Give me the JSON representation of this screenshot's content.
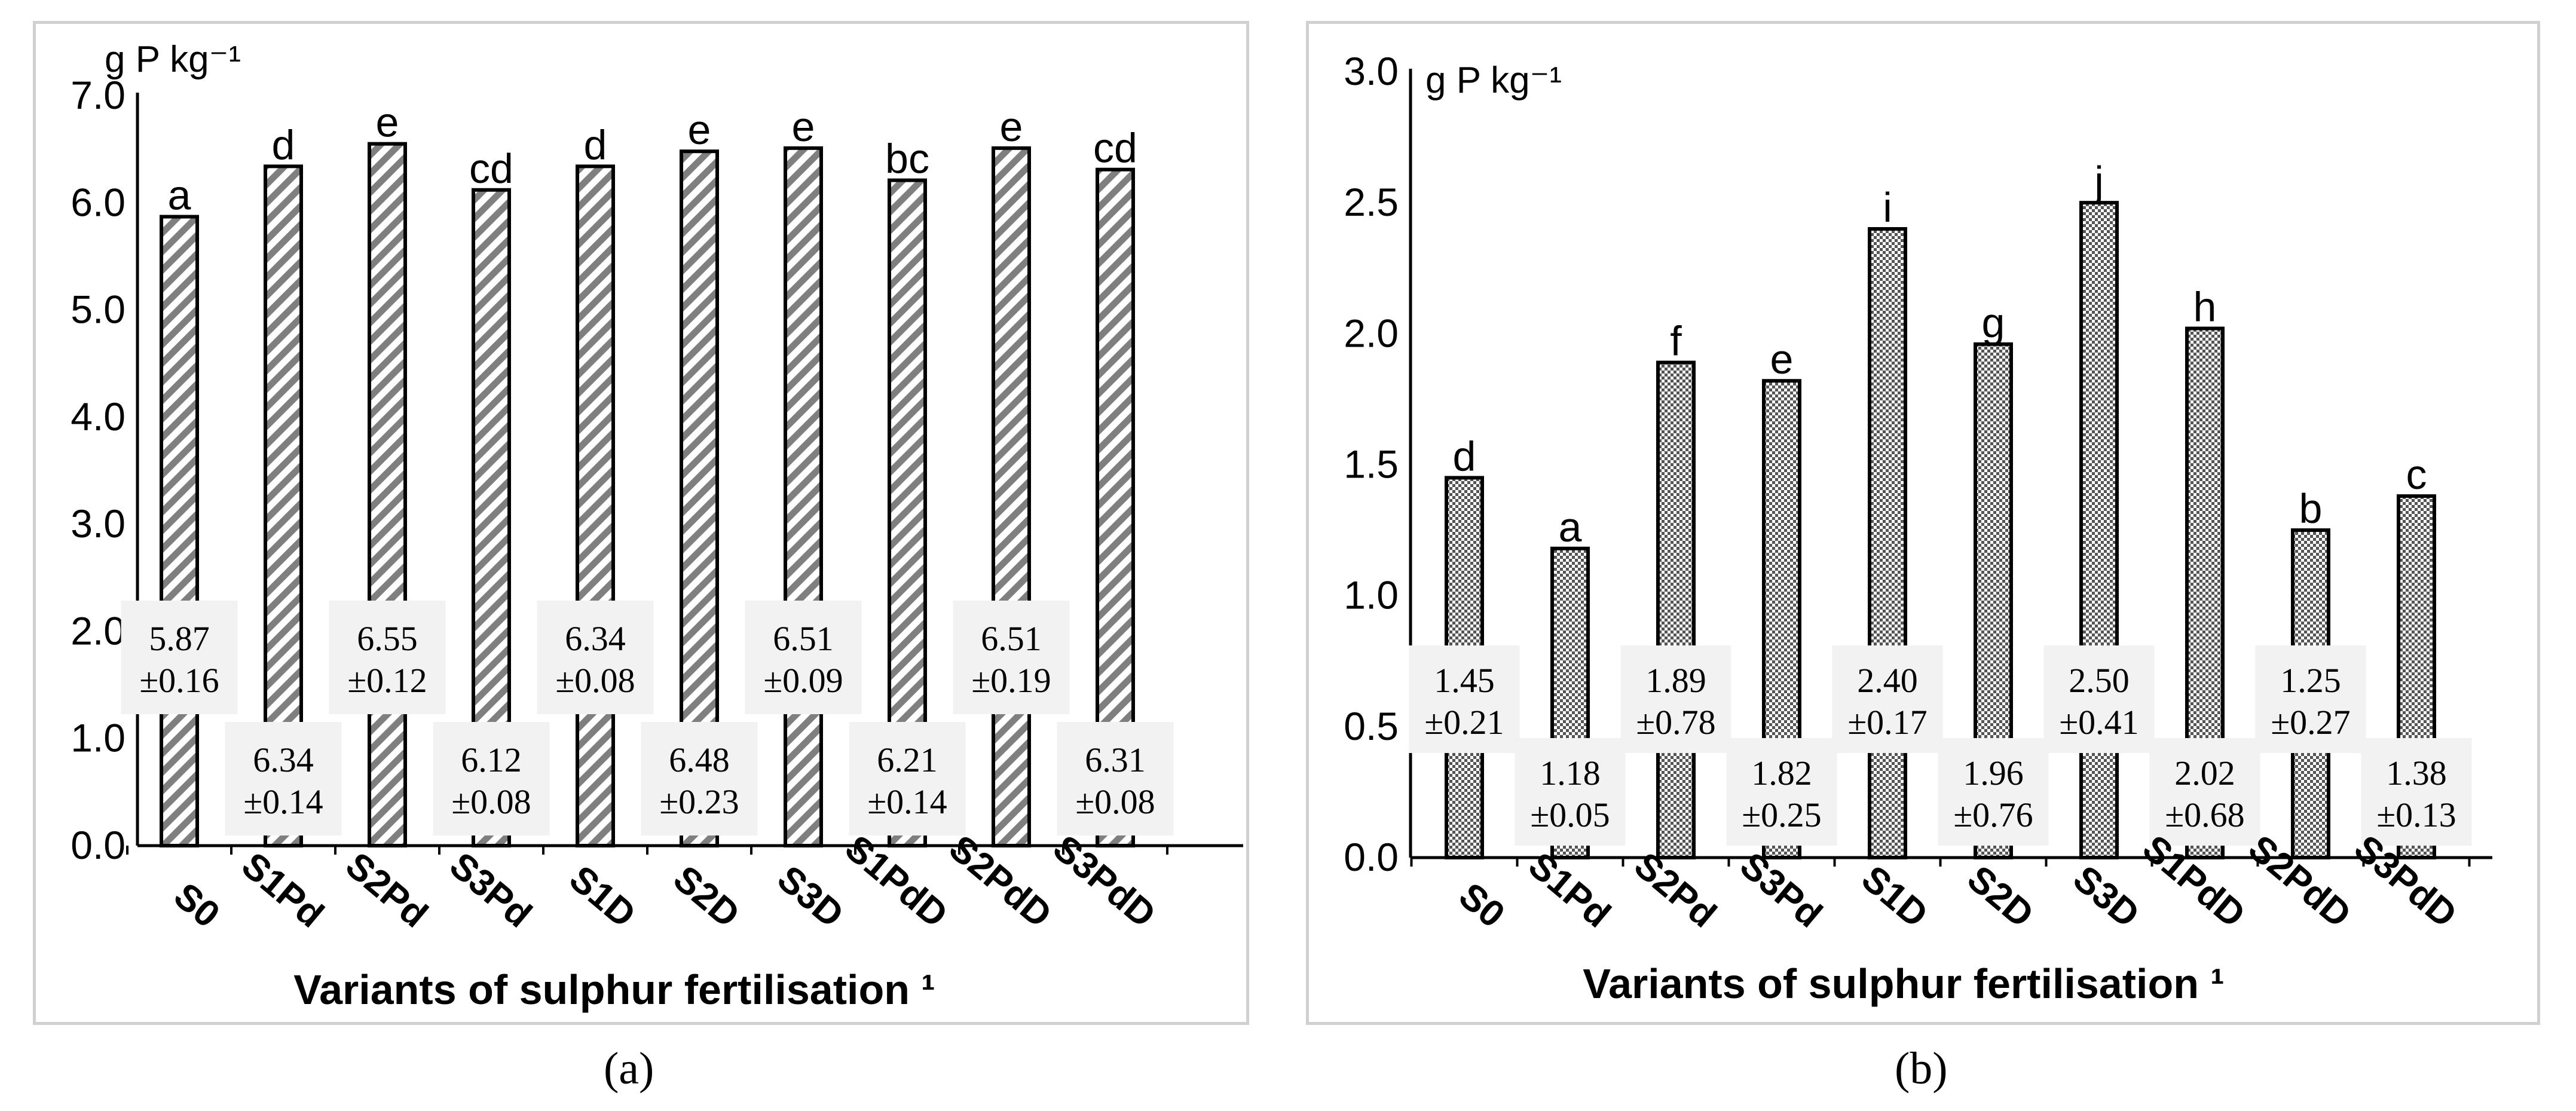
{
  "colors": {
    "axis": "#000000",
    "bar_outline": "#000000",
    "label_box": "#f2f2f2",
    "panel_border": "#d0d0d0"
  },
  "chart_data": [
    {
      "type": "bar",
      "panel": "a",
      "pattern": "diagonal-stripes",
      "ylabel": "g P kg⁻¹",
      "xlabel": "Variants of sulphur fertilisation ¹",
      "ylim": [
        0,
        7
      ],
      "yticks": [
        "0.0",
        "1.0",
        "2.0",
        "3.0",
        "4.0",
        "5.0",
        "6.0",
        "7.0"
      ],
      "categories": [
        "S0",
        "S1Pd",
        "S2Pd",
        "S3Pd",
        "S1D",
        "S2D",
        "S3D",
        "S1PdD",
        "S2PdD",
        "S3PdD"
      ],
      "values": [
        5.87,
        6.34,
        6.55,
        6.12,
        6.34,
        6.48,
        6.51,
        6.21,
        6.51,
        6.31
      ],
      "mean_labels": [
        "5.87",
        "6.34",
        "6.55",
        "6.12",
        "6.34",
        "6.48",
        "6.51",
        "6.21",
        "6.51",
        "6.31"
      ],
      "sd_labels": [
        "±0.16",
        "±0.14",
        "±0.12",
        "±0.08",
        "±0.08",
        "±0.23",
        "±0.09",
        "±0.14",
        "±0.19",
        "±0.08"
      ],
      "letters": [
        "a",
        "d",
        "e",
        "cd",
        "d",
        "e",
        "e",
        "bc",
        "e",
        "cd"
      ],
      "caption": "(a)"
    },
    {
      "type": "bar",
      "panel": "b",
      "pattern": "dots",
      "ylabel": "g P kg⁻¹",
      "xlabel": "Variants of sulphur fertilisation ¹",
      "ylim": [
        0,
        3
      ],
      "yticks": [
        "0.0",
        "0.5",
        "1.0",
        "1.5",
        "2.0",
        "2.5",
        "3.0"
      ],
      "categories": [
        "S0",
        "S1Pd",
        "S2Pd",
        "S3Pd",
        "S1D",
        "S2D",
        "S3D",
        "S1PdD",
        "S2PdD",
        "S3PdD"
      ],
      "values": [
        1.45,
        1.18,
        1.89,
        1.82,
        2.4,
        1.96,
        2.5,
        2.02,
        1.25,
        1.38
      ],
      "mean_labels": [
        "1.45",
        "1.18",
        "1.89",
        "1.82",
        "2.40",
        "1.96",
        "2.50",
        "2.02",
        "1.25",
        "1.38"
      ],
      "sd_labels": [
        "±0.21",
        "±0.05",
        "±0.78",
        "±0.25",
        "±0.17",
        "±0.76",
        "±0.41",
        "±0.68",
        "±0.27",
        "±0.13"
      ],
      "letters": [
        "d",
        "a",
        "f",
        "e",
        "i",
        "g",
        "j",
        "h",
        "b",
        "c"
      ],
      "caption": "(b)"
    }
  ]
}
